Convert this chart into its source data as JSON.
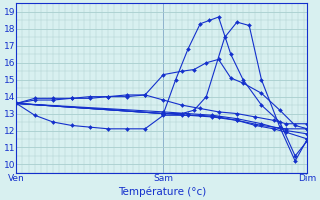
{
  "xlabel": "Température (°c)",
  "xtick_labels": [
    "Ven",
    "Sam",
    "Dim"
  ],
  "xtick_positions": [
    0,
    48,
    95
  ],
  "ylim": [
    9.5,
    19.5
  ],
  "yticks": [
    10,
    11,
    12,
    13,
    14,
    15,
    16,
    17,
    18,
    19
  ],
  "xlim": [
    0,
    95
  ],
  "bg_color": "#d8f0f0",
  "grid_color": "#a8cece",
  "line_color": "#1430cc",
  "lines": [
    [
      0,
      13.6,
      6,
      13.8,
      12,
      13.8,
      18,
      13.9,
      24,
      13.9,
      30,
      14.0,
      36,
      14.1,
      42,
      14.1,
      48,
      15.3,
      54,
      15.5,
      58,
      15.6,
      62,
      16.0,
      66,
      16.2,
      70,
      15.1,
      74,
      14.8,
      80,
      14.2,
      86,
      13.2,
      91,
      12.3,
      95,
      12.1
    ],
    [
      0,
      13.6,
      48,
      13.0,
      52,
      15.0,
      56,
      16.8,
      60,
      18.3,
      63,
      18.5,
      66,
      18.7,
      70,
      16.5,
      74,
      15.0,
      80,
      13.5,
      86,
      12.5,
      91,
      10.5,
      95,
      11.4
    ],
    [
      0,
      13.6,
      48,
      13.0,
      54,
      13.0,
      58,
      13.2,
      62,
      14.0,
      68,
      17.5,
      72,
      18.4,
      76,
      18.2,
      80,
      15.0,
      86,
      12.2,
      91,
      10.2,
      95,
      11.5
    ],
    [
      0,
      13.6,
      48,
      13.0,
      56,
      12.9,
      64,
      12.8,
      72,
      12.6,
      80,
      12.3,
      88,
      12.1,
      95,
      12.1
    ],
    [
      0,
      13.6,
      48,
      13.1,
      56,
      13.0,
      64,
      12.9,
      72,
      12.7,
      80,
      12.4,
      88,
      12.0,
      95,
      11.8
    ],
    [
      0,
      13.6,
      6,
      12.9,
      12,
      12.5,
      18,
      12.3,
      24,
      12.2,
      30,
      12.1,
      36,
      12.1,
      42,
      12.1,
      48,
      12.9,
      54,
      12.9,
      60,
      12.9,
      66,
      12.8,
      72,
      12.6,
      78,
      12.3,
      84,
      12.1,
      88,
      11.9,
      95,
      11.5
    ],
    [
      0,
      13.6,
      6,
      13.9,
      12,
      13.9,
      18,
      13.9,
      24,
      14.0,
      30,
      14.0,
      36,
      14.0,
      42,
      14.1,
      48,
      13.8,
      54,
      13.5,
      60,
      13.3,
      66,
      13.1,
      72,
      13.0,
      78,
      12.8,
      84,
      12.6,
      88,
      12.4,
      95,
      12.4
    ]
  ]
}
